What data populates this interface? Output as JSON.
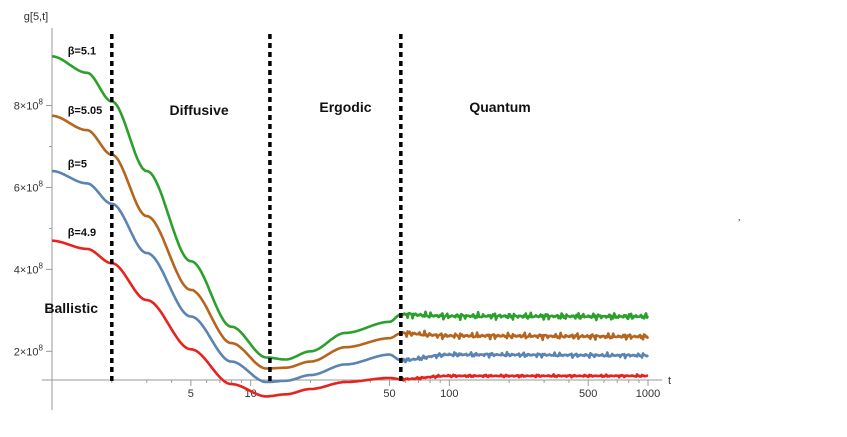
{
  "chart_data": {
    "type": "line",
    "x_scale": "log",
    "y_scale": "linear",
    "xlabel": "t",
    "ylabel": "g[5,t]",
    "xlim": [
      1,
      1000
    ],
    "ylim": [
      130000000,
      960000000
    ],
    "x_ticks": [
      {
        "value": 5,
        "label": "5"
      },
      {
        "value": 10,
        "label": "10"
      },
      {
        "value": 50,
        "label": "50"
      },
      {
        "value": 100,
        "label": "100"
      },
      {
        "value": 500,
        "label": "500"
      },
      {
        "value": 1000,
        "label": "1000"
      }
    ],
    "y_ticks": [
      {
        "value": 200000000,
        "mantissa": "2",
        "exponent": "8"
      },
      {
        "value": 400000000,
        "mantissa": "4",
        "exponent": "8"
      },
      {
        "value": 600000000,
        "mantissa": "6",
        "exponent": "8"
      },
      {
        "value": 800000000,
        "mantissa": "8",
        "exponent": "8"
      }
    ],
    "regions": [
      {
        "label": "Ballistic",
        "x": 1.25
      },
      {
        "label": "Diffusive",
        "x": 5.5
      },
      {
        "label": "Ergodic",
        "x": 30
      },
      {
        "label": "Quantum",
        "x": 180
      }
    ],
    "boundaries": [
      2,
      12.5,
      57
    ],
    "series": [
      {
        "name": "β=5.1",
        "color": "#2ca02c",
        "label_x": 1.2,
        "x": [
          1,
          1.5,
          2,
          3,
          5,
          8,
          12,
          15,
          20,
          30,
          50,
          57,
          100,
          1000
        ],
        "y": [
          920000000,
          880000000,
          810000000,
          640000000,
          420000000,
          260000000,
          185000000,
          180000000,
          200000000,
          245000000,
          272000000,
          290000000,
          286000000,
          285000000
        ],
        "noise": 10000000
      },
      {
        "name": "β=5.05",
        "color": "#b5651d",
        "label_x": 1.2,
        "x": [
          1,
          1.5,
          2,
          3,
          5,
          8,
          12,
          15,
          20,
          30,
          50,
          57,
          100,
          1000
        ],
        "y": [
          775000000,
          740000000,
          680000000,
          530000000,
          350000000,
          220000000,
          158000000,
          160000000,
          175000000,
          210000000,
          232000000,
          244000000,
          238000000,
          236000000
        ],
        "noise": 9000000
      },
      {
        "name": "β=5",
        "color": "#5b84b1",
        "label_x": 1.2,
        "x": [
          1,
          1.5,
          2,
          3,
          5,
          8,
          12,
          15,
          20,
          30,
          50,
          57,
          100,
          1000
        ],
        "y": [
          640000000,
          610000000,
          560000000,
          440000000,
          285000000,
          175000000,
          125000000,
          128000000,
          142000000,
          168000000,
          192000000,
          178000000,
          192000000,
          190000000
        ],
        "noise": 7000000
      },
      {
        "name": "β=4.9",
        "color": "#e6241f",
        "label_x": 1.2,
        "x": [
          1,
          1.5,
          2,
          3,
          5,
          8,
          12,
          15,
          20,
          30,
          50,
          57,
          100,
          1000
        ],
        "y": [
          470000000,
          450000000,
          415000000,
          325000000,
          205000000,
          120000000,
          90000000,
          95000000,
          108000000,
          125000000,
          135000000,
          132000000,
          140000000,
          140000000
        ],
        "noise": 4000000
      }
    ]
  }
}
